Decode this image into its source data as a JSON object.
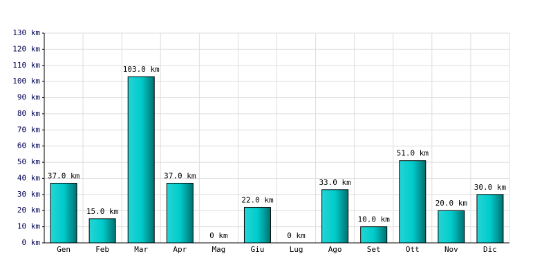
{
  "chart_data": {
    "type": "bar",
    "categories": [
      "Gen",
      "Feb",
      "Mar",
      "Apr",
      "Mag",
      "Giu",
      "Lug",
      "Ago",
      "Set",
      "Ott",
      "Nov",
      "Dic"
    ],
    "values": [
      37,
      15,
      103,
      37,
      0,
      22,
      0,
      33,
      10,
      51,
      20,
      30
    ],
    "value_labels": [
      "37.0 km",
      "15.0 km",
      "103.0 km",
      "37.0 km",
      "0 km",
      "22.0 km",
      "0 km",
      "33.0 km",
      "10.0 km",
      "51.0 km",
      "20.0 km",
      "30.0 km"
    ],
    "color": "#00cccc",
    "ylim": [
      0,
      130
    ],
    "yticks": [
      {
        "value": 0,
        "label": "0 km"
      },
      {
        "value": 10,
        "label": "10 km"
      },
      {
        "value": 20,
        "label": "20 km"
      },
      {
        "value": 30,
        "label": "30 km"
      },
      {
        "value": 40,
        "label": "40 km"
      },
      {
        "value": 50,
        "label": "50 km"
      },
      {
        "value": 60,
        "label": "60 km"
      },
      {
        "value": 70,
        "label": "70 km"
      },
      {
        "value": 80,
        "label": "80 km"
      },
      {
        "value": 90,
        "label": "90 km"
      },
      {
        "value": 100,
        "label": "100 km"
      },
      {
        "value": 110,
        "label": "110 km"
      },
      {
        "value": 120,
        "label": "120 km"
      },
      {
        "value": 130,
        "label": "130 km"
      }
    ],
    "grid": true
  }
}
